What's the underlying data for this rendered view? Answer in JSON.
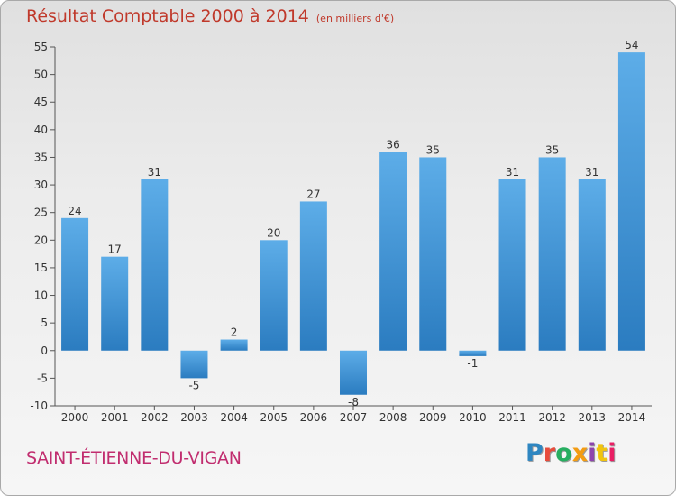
{
  "header": {
    "title": "Résultat Comptable 2000 à 2014",
    "unit": "(en milliers d'€)"
  },
  "footer": {
    "commune": "SAINT-ÉTIENNE-DU-VIGAN",
    "logo": "Proxiti"
  },
  "colors": {
    "bar_light": "#5dade8",
    "bar_dark": "#2b7cc0",
    "title": "#c0392b",
    "commune": "#c12d6f",
    "logo_letters": [
      "#2e86c1",
      "#e74c3c",
      "#27ae60",
      "#f39c12",
      "#8e44ad",
      "#f1c40f",
      "#e91e63"
    ]
  },
  "chart_data": {
    "type": "bar",
    "title": "Résultat Comptable 2000 à 2014",
    "subtitle": "(en milliers d'€)",
    "xlabel": "",
    "ylabel": "",
    "categories": [
      "2000",
      "2001",
      "2002",
      "2003",
      "2004",
      "2005",
      "2006",
      "2007",
      "2008",
      "2009",
      "2010",
      "2011",
      "2012",
      "2013",
      "2014"
    ],
    "values": [
      24,
      17,
      31,
      -5,
      2,
      20,
      27,
      -8,
      36,
      35,
      -1,
      31,
      35,
      31,
      54
    ],
    "ylim": [
      -10,
      55
    ],
    "yticks": [
      -10,
      -5,
      0,
      5,
      10,
      15,
      20,
      25,
      30,
      35,
      40,
      45,
      50,
      55
    ],
    "grid": false,
    "legend": "none"
  }
}
